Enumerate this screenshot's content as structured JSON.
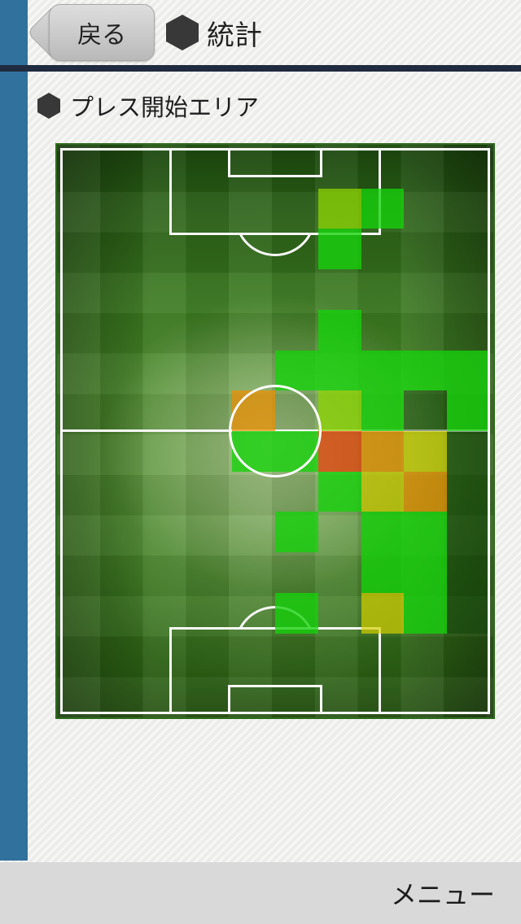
{
  "header": {
    "back_label": "戻る",
    "title": "統計",
    "title_icon": "hexagon-icon"
  },
  "section": {
    "title": "プレス開始エリア",
    "icon": "hexagon-icon"
  },
  "footer": {
    "menu_label": "メニュー"
  },
  "colors": {
    "accent_blue": "#31719e",
    "navy_divider": "#202b40",
    "page_background": "#efefed",
    "bottom_bar": "#d9d9d9",
    "pitch_border": "#2e6b1c",
    "pitch_line": "#f8f8f8"
  },
  "heatmap": {
    "description": "press-start-area heatmap on vertical football pitch, 10 columns x 14 rows",
    "cols": 10,
    "rows": 14,
    "palette": {
      "green": "rgba(20,210,10,0.78)",
      "yellowgreen": "rgba(140,212,0,0.75)",
      "olive": "rgba(212,206,0,0.70)",
      "orange": "rgba(238,142,0,0.72)",
      "red": "rgba(232,58,4,0.72)",
      "darkgreen": "rgba(12,62,4,0.45)"
    },
    "cells": [
      {
        "col": 6,
        "row": 1,
        "level": "yellowgreen"
      },
      {
        "col": 7,
        "row": 1,
        "level": "green"
      },
      {
        "col": 6,
        "row": 2,
        "level": "green"
      },
      {
        "col": 6,
        "row": 4,
        "level": "green"
      },
      {
        "col": 5,
        "row": 5,
        "level": "green"
      },
      {
        "col": 6,
        "row": 5,
        "level": "green"
      },
      {
        "col": 7,
        "row": 5,
        "level": "green"
      },
      {
        "col": 8,
        "row": 5,
        "level": "green"
      },
      {
        "col": 9,
        "row": 5,
        "level": "green"
      },
      {
        "col": 4,
        "row": 6,
        "level": "orange"
      },
      {
        "col": 6,
        "row": 6,
        "level": "yellowgreen"
      },
      {
        "col": 7,
        "row": 6,
        "level": "green"
      },
      {
        "col": 8,
        "row": 6,
        "level": "darkgreen"
      },
      {
        "col": 9,
        "row": 6,
        "level": "green"
      },
      {
        "col": 4,
        "row": 7,
        "level": "green"
      },
      {
        "col": 5,
        "row": 7,
        "level": "green"
      },
      {
        "col": 6,
        "row": 7,
        "level": "red"
      },
      {
        "col": 7,
        "row": 7,
        "level": "orange"
      },
      {
        "col": 8,
        "row": 7,
        "level": "olive"
      },
      {
        "col": 9,
        "row": 7,
        "level": "darkgreen"
      },
      {
        "col": 6,
        "row": 8,
        "level": "green"
      },
      {
        "col": 7,
        "row": 8,
        "level": "olive"
      },
      {
        "col": 8,
        "row": 8,
        "level": "orange"
      },
      {
        "col": 9,
        "row": 8,
        "level": "darkgreen"
      },
      {
        "col": 5,
        "row": 9,
        "level": "green"
      },
      {
        "col": 7,
        "row": 9,
        "level": "green"
      },
      {
        "col": 8,
        "row": 9,
        "level": "green"
      },
      {
        "col": 9,
        "row": 9,
        "level": "darkgreen"
      },
      {
        "col": 7,
        "row": 10,
        "level": "green"
      },
      {
        "col": 8,
        "row": 10,
        "level": "green"
      },
      {
        "col": 9,
        "row": 10,
        "level": "darkgreen"
      },
      {
        "col": 5,
        "row": 11,
        "level": "green"
      },
      {
        "col": 7,
        "row": 11,
        "level": "olive"
      },
      {
        "col": 8,
        "row": 11,
        "level": "green"
      },
      {
        "col": 9,
        "row": 11,
        "level": "darkgreen"
      }
    ]
  }
}
